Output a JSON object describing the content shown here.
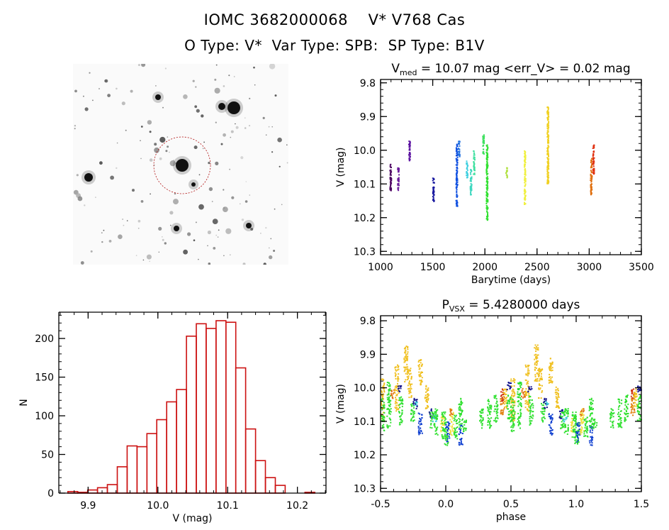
{
  "header": {
    "title": "IOMC 3682000068    V* V768 Cas",
    "subtitle": "O Type: V*  Var Type: SPB:  SP Type: B1V"
  },
  "chart_data": [
    {
      "type": "scatter",
      "title_main": "V",
      "title_sub": "med",
      "title_rest": " = 10.07 mag <err_V> = 0.02 mag",
      "xlabel": "Barytime (days)",
      "ylabel": "V (mag)",
      "xlim": [
        1000,
        3500
      ],
      "ylim": [
        9.79,
        10.31
      ],
      "y_inverted": true,
      "xticks": [
        1000,
        1500,
        2000,
        2500,
        3000,
        3500
      ],
      "xticklabels": [
        "1000",
        "1500",
        "2000",
        "2500",
        "3000",
        "3500"
      ],
      "yticks": [
        9.8,
        9.9,
        10.0,
        10.1,
        10.2,
        10.3
      ],
      "yticklabels": [
        "9.8",
        "9.9",
        "10.0",
        "10.1",
        "10.2",
        "10.3"
      ],
      "grid": false,
      "segments": [
        {
          "x": 1091,
          "ymin": 10.04,
          "ymax": 10.12,
          "color": "#4b0060"
        },
        {
          "x": 1165,
          "ymin": 10.05,
          "ymax": 10.12,
          "color": "#6a1b9a"
        },
        {
          "x": 1272,
          "ymin": 9.97,
          "ymax": 10.03,
          "color": "#5a10a0"
        },
        {
          "x": 1501,
          "ymin": 10.08,
          "ymax": 10.15,
          "color": "#1a1aa0"
        },
        {
          "x": 1725,
          "ymin": 9.98,
          "ymax": 10.17,
          "color": "#1050e0"
        },
        {
          "x": 1747,
          "ymin": 9.97,
          "ymax": 10.02,
          "color": "#2070e0"
        },
        {
          "x": 1823,
          "ymin": 10.03,
          "ymax": 10.08,
          "color": "#40d0e0"
        },
        {
          "x": 1861,
          "ymin": 10.05,
          "ymax": 10.13,
          "color": "#40d8c0"
        },
        {
          "x": 1891,
          "ymin": 10.0,
          "ymax": 10.07,
          "color": "#40e0a0"
        },
        {
          "x": 1981,
          "ymin": 9.95,
          "ymax": 10.01,
          "color": "#40e060"
        },
        {
          "x": 2015,
          "ymin": 9.98,
          "ymax": 10.21,
          "color": "#30e030"
        },
        {
          "x": 2203,
          "ymin": 10.05,
          "ymax": 10.08,
          "color": "#b0e040"
        },
        {
          "x": 2378,
          "ymin": 10.0,
          "ymax": 10.16,
          "color": "#f0f040"
        },
        {
          "x": 2598,
          "ymin": 9.87,
          "ymax": 10.1,
          "color": "#f0d020"
        },
        {
          "x": 3013,
          "ymin": 10.02,
          "ymax": 10.13,
          "color": "#e07010"
        },
        {
          "x": 3035,
          "ymin": 9.98,
          "ymax": 10.07,
          "color": "#e03010"
        }
      ]
    },
    {
      "type": "scatter",
      "title_main": "P",
      "title_sub": "VSX",
      "title_rest": " = 5.4280000 days",
      "xlabel": "phase",
      "ylabel": "V (mag)",
      "xlim": [
        -0.5,
        1.5
      ],
      "ylim": [
        9.785,
        10.31
      ],
      "y_inverted": true,
      "xticks": [
        -0.5,
        0.0,
        0.5,
        1.0,
        1.5
      ],
      "xticklabels": [
        "-0.5",
        "0.0",
        "0.5",
        "1.0",
        "1.5"
      ],
      "yticks": [
        9.8,
        9.9,
        10.0,
        10.1,
        10.2,
        10.3
      ],
      "yticklabels": [
        "9.8",
        "9.9",
        "10.0",
        "10.1",
        "10.2",
        "10.3"
      ],
      "grid": false,
      "phase_repeat": 1,
      "clusters": [
        {
          "phase": -0.49,
          "ymin": 9.97,
          "ymax": 10.1,
          "color": "#f0c020"
        },
        {
          "phase": -0.49,
          "ymin": 10.03,
          "ymax": 10.13,
          "color": "#30e030"
        },
        {
          "phase": -0.44,
          "ymin": 9.98,
          "ymax": 10.12,
          "color": "#30e030"
        },
        {
          "phase": -0.41,
          "ymin": 10.0,
          "ymax": 10.03,
          "color": "#e07010"
        },
        {
          "phase": -0.38,
          "ymin": 9.93,
          "ymax": 10.07,
          "color": "#f0c020"
        },
        {
          "phase": -0.35,
          "ymin": 10.02,
          "ymax": 10.11,
          "color": "#30e030"
        },
        {
          "phase": -0.36,
          "ymin": 9.99,
          "ymax": 10.01,
          "color": "#10108a"
        },
        {
          "phase": -0.31,
          "ymin": 9.87,
          "ymax": 9.98,
          "color": "#f0c020"
        },
        {
          "phase": -0.28,
          "ymin": 9.94,
          "ymax": 10.03,
          "color": "#f0c020"
        },
        {
          "phase": -0.26,
          "ymin": 10.04,
          "ymax": 10.1,
          "color": "#30e030"
        },
        {
          "phase": -0.24,
          "ymin": 10.03,
          "ymax": 10.06,
          "color": "#10108a"
        },
        {
          "phase": -0.23,
          "ymin": 10.04,
          "ymax": 10.05,
          "color": "#40d0e0"
        },
        {
          "phase": -0.2,
          "ymin": 9.91,
          "ymax": 9.99,
          "color": "#f0c020"
        },
        {
          "phase": -0.2,
          "ymin": 10.07,
          "ymax": 10.14,
          "color": "#1040d0"
        },
        {
          "phase": -0.15,
          "ymin": 9.99,
          "ymax": 10.06,
          "color": "#f0c020"
        },
        {
          "phase": -0.12,
          "ymin": 10.06,
          "ymax": 10.09,
          "color": "#10108a"
        },
        {
          "phase": -0.11,
          "ymin": 10.07,
          "ymax": 10.12,
          "color": "#30e030"
        },
        {
          "phase": -0.09,
          "ymin": 10.08,
          "ymax": 10.1,
          "color": "#40d0e0"
        },
        {
          "phase": -0.08,
          "ymin": 10.06,
          "ymax": 10.14,
          "color": "#30e030"
        },
        {
          "phase": -0.03,
          "ymin": 10.08,
          "ymax": 10.13,
          "color": "#f0e040"
        },
        {
          "phase": -0.02,
          "ymin": 10.07,
          "ymax": 10.15,
          "color": "#30e030"
        },
        {
          "phase": 0.0,
          "ymin": 10.1,
          "ymax": 10.17,
          "color": "#30e030"
        },
        {
          "phase": 0.01,
          "ymin": 10.1,
          "ymax": 10.16,
          "color": "#1040d0"
        },
        {
          "phase": 0.04,
          "ymin": 10.06,
          "ymax": 10.14,
          "color": "#f0e040"
        },
        {
          "phase": 0.04,
          "ymin": 10.06,
          "ymax": 10.08,
          "color": "#e07010"
        },
        {
          "phase": 0.07,
          "ymin": 10.08,
          "ymax": 10.15,
          "color": "#30e030"
        },
        {
          "phase": 0.11,
          "ymin": 10.11,
          "ymax": 10.17,
          "color": "#1040d0"
        },
        {
          "phase": 0.11,
          "ymin": 10.03,
          "ymax": 10.12,
          "color": "#30e030"
        },
        {
          "phase": 0.14,
          "ymin": 10.09,
          "ymax": 10.13,
          "color": "#30e030"
        },
        {
          "phase": 0.27,
          "ymin": 10.06,
          "ymax": 10.12,
          "color": "#30e030"
        },
        {
          "phase": 0.33,
          "ymin": 10.03,
          "ymax": 10.12,
          "color": "#30e030"
        },
        {
          "phase": 0.38,
          "ymin": 10.02,
          "ymax": 10.1,
          "color": "#30e030"
        },
        {
          "phase": 0.43,
          "ymin": 10.0,
          "ymax": 10.04,
          "color": "#d03010"
        },
        {
          "phase": 0.43,
          "ymin": 10.03,
          "ymax": 10.08,
          "color": "#e08010"
        },
        {
          "phase": 0.45,
          "ymin": 10.0,
          "ymax": 10.06,
          "color": "#f0c020"
        },
        {
          "phase": 0.48,
          "ymin": 9.98,
          "ymax": 10.01,
          "color": "#10108a"
        },
        {
          "phase": 0.48,
          "ymin": 10.02,
          "ymax": 10.1,
          "color": "#30e030"
        }
      ]
    },
    {
      "type": "bar",
      "subtype": "histogram",
      "xlabel": "V (mag)",
      "ylabel": "N",
      "xlim": [
        9.858,
        10.241
      ],
      "ylim": [
        0,
        234
      ],
      "xticks": [
        9.9,
        10.0,
        10.1,
        10.2
      ],
      "xticklabels": [
        "9.9",
        "10.0",
        "10.1",
        "10.2"
      ],
      "yticks": [
        0,
        50,
        100,
        150,
        200
      ],
      "yticklabels": [
        "0",
        "50",
        "100",
        "150",
        "200"
      ],
      "grid": false,
      "color": "#cc1111",
      "bin_start": 9.871,
      "bin_width": 0.01416,
      "counts": [
        2,
        1,
        4,
        7,
        11,
        34,
        61,
        60,
        77,
        95,
        118,
        134,
        203,
        219,
        213,
        223,
        221,
        162,
        83,
        42,
        20,
        10,
        0,
        0,
        1
      ]
    }
  ]
}
